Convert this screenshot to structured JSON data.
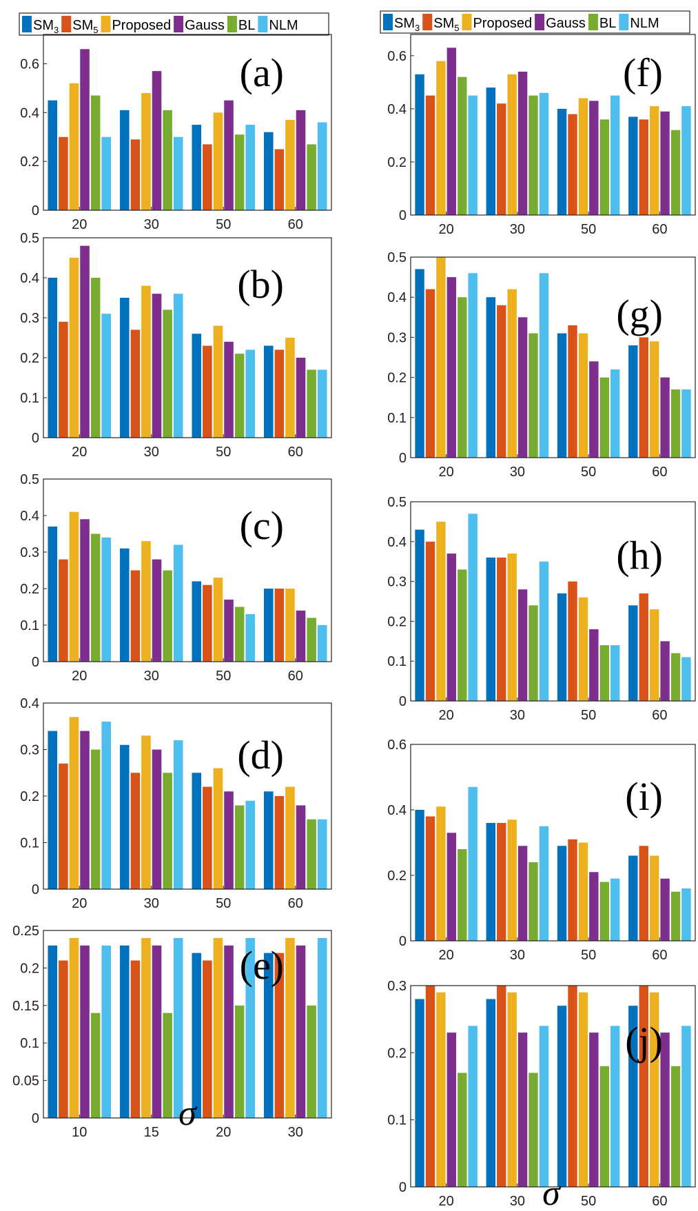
{
  "legend": [
    {
      "name": "SM",
      "sub": "3",
      "color": "#0072BD"
    },
    {
      "name": "SM",
      "sub": "5",
      "color": "#D95319"
    },
    {
      "name": "Proposed",
      "sub": "",
      "color": "#EDB120"
    },
    {
      "name": "Gauss",
      "sub": "",
      "color": "#7E2F8E"
    },
    {
      "name": "BL",
      "sub": "",
      "color": "#77AC30"
    },
    {
      "name": "NLM",
      "sub": "",
      "color": "#4DBEEE"
    }
  ],
  "xlabel_symbol": "σ",
  "chart_data": [
    {
      "panel": "(a)",
      "type": "bar",
      "categories": [
        "20",
        "30",
        "50",
        "60"
      ],
      "ylim": [
        0,
        0.72
      ],
      "yticks": [
        "0",
        "0.2",
        "0.4",
        "0.6"
      ],
      "ytick_values": [
        0,
        0.2,
        0.4,
        0.6
      ],
      "series": [
        [
          0.45,
          0.41,
          0.35,
          0.32
        ],
        [
          0.3,
          0.29,
          0.27,
          0.25
        ],
        [
          0.52,
          0.48,
          0.4,
          0.37
        ],
        [
          0.66,
          0.57,
          0.45,
          0.41
        ],
        [
          0.47,
          0.41,
          0.31,
          0.27
        ],
        [
          0.3,
          0.3,
          0.35,
          0.36
        ]
      ]
    },
    {
      "panel": "(b)",
      "type": "bar",
      "categories": [
        "20",
        "30",
        "50",
        "60"
      ],
      "ylim": [
        0,
        0.5
      ],
      "yticks": [
        "0",
        "0.1",
        "0.2",
        "0.3",
        "0.4",
        "0.5"
      ],
      "ytick_values": [
        0,
        0.1,
        0.2,
        0.3,
        0.4,
        0.5
      ],
      "series": [
        [
          0.4,
          0.35,
          0.26,
          0.23
        ],
        [
          0.29,
          0.27,
          0.23,
          0.22
        ],
        [
          0.45,
          0.38,
          0.28,
          0.25
        ],
        [
          0.48,
          0.36,
          0.24,
          0.2
        ],
        [
          0.4,
          0.32,
          0.21,
          0.17
        ],
        [
          0.31,
          0.36,
          0.22,
          0.17
        ]
      ]
    },
    {
      "panel": "(c)",
      "type": "bar",
      "categories": [
        "20",
        "30",
        "50",
        "60"
      ],
      "ylim": [
        0,
        0.5
      ],
      "yticks": [
        "0",
        "0.1",
        "0.2",
        "0.3",
        "0.4",
        "0.5"
      ],
      "ytick_values": [
        0,
        0.1,
        0.2,
        0.3,
        0.4,
        0.5
      ],
      "series": [
        [
          0.37,
          0.31,
          0.22,
          0.2
        ],
        [
          0.28,
          0.25,
          0.21,
          0.2
        ],
        [
          0.41,
          0.33,
          0.23,
          0.2
        ],
        [
          0.39,
          0.28,
          0.17,
          0.14
        ],
        [
          0.35,
          0.25,
          0.15,
          0.12
        ],
        [
          0.34,
          0.32,
          0.13,
          0.1
        ]
      ]
    },
    {
      "panel": "(d)",
      "type": "bar",
      "categories": [
        "20",
        "30",
        "50",
        "60"
      ],
      "ylim": [
        0,
        0.4
      ],
      "yticks": [
        "0",
        "0.1",
        "0.2",
        "0.3",
        "0.4"
      ],
      "ytick_values": [
        0,
        0.1,
        0.2,
        0.3,
        0.4
      ],
      "series": [
        [
          0.34,
          0.31,
          0.25,
          0.21
        ],
        [
          0.27,
          0.25,
          0.22,
          0.2
        ],
        [
          0.37,
          0.33,
          0.26,
          0.22
        ],
        [
          0.34,
          0.3,
          0.21,
          0.18
        ],
        [
          0.3,
          0.25,
          0.18,
          0.15
        ],
        [
          0.36,
          0.32,
          0.19,
          0.15
        ]
      ]
    },
    {
      "panel": "(e)",
      "type": "bar",
      "categories": [
        "10",
        "15",
        "20",
        "30"
      ],
      "ylim": [
        0,
        0.25
      ],
      "yticks": [
        "0",
        "0.05",
        "0.1",
        "0.15",
        "0.2",
        "0.25"
      ],
      "ytick_values": [
        0,
        0.05,
        0.1,
        0.15,
        0.2,
        0.25
      ],
      "series": [
        [
          0.23,
          0.23,
          0.22,
          0.22
        ],
        [
          0.21,
          0.21,
          0.21,
          0.22
        ],
        [
          0.24,
          0.24,
          0.24,
          0.24
        ],
        [
          0.23,
          0.23,
          0.23,
          0.23
        ],
        [
          0.14,
          0.14,
          0.15,
          0.15
        ],
        [
          0.23,
          0.24,
          0.24,
          0.24
        ]
      ]
    },
    {
      "panel": "(f)",
      "type": "bar",
      "categories": [
        "20",
        "30",
        "50",
        "60"
      ],
      "ylim": [
        0,
        0.68
      ],
      "yticks": [
        "0",
        "0.2",
        "0.4",
        "0.6"
      ],
      "ytick_values": [
        0,
        0.2,
        0.4,
        0.6
      ],
      "series": [
        [
          0.53,
          0.48,
          0.4,
          0.37
        ],
        [
          0.45,
          0.42,
          0.38,
          0.36
        ],
        [
          0.58,
          0.53,
          0.44,
          0.41
        ],
        [
          0.63,
          0.54,
          0.43,
          0.39
        ],
        [
          0.52,
          0.45,
          0.36,
          0.32
        ],
        [
          0.45,
          0.46,
          0.45,
          0.41
        ]
      ]
    },
    {
      "panel": "(g)",
      "type": "bar",
      "categories": [
        "20",
        "30",
        "50",
        "60"
      ],
      "ylim": [
        0,
        0.5
      ],
      "yticks": [
        "0",
        "0.1",
        "0.2",
        "0.3",
        "0.4",
        "0.5"
      ],
      "ytick_values": [
        0,
        0.1,
        0.2,
        0.3,
        0.4,
        0.5
      ],
      "series": [
        [
          0.47,
          0.4,
          0.31,
          0.28
        ],
        [
          0.42,
          0.38,
          0.33,
          0.3
        ],
        [
          0.5,
          0.42,
          0.31,
          0.29
        ],
        [
          0.45,
          0.35,
          0.24,
          0.2
        ],
        [
          0.4,
          0.31,
          0.2,
          0.17
        ],
        [
          0.46,
          0.46,
          0.22,
          0.17
        ]
      ]
    },
    {
      "panel": "(h)",
      "type": "bar",
      "categories": [
        "20",
        "30",
        "50",
        "60"
      ],
      "ylim": [
        0,
        0.5
      ],
      "yticks": [
        "0",
        "0.1",
        "0.2",
        "0.3",
        "0.4",
        "0.5"
      ],
      "ytick_values": [
        0,
        0.1,
        0.2,
        0.3,
        0.4,
        0.5
      ],
      "series": [
        [
          0.43,
          0.36,
          0.27,
          0.24
        ],
        [
          0.4,
          0.36,
          0.3,
          0.27
        ],
        [
          0.45,
          0.37,
          0.26,
          0.23
        ],
        [
          0.37,
          0.28,
          0.18,
          0.15
        ],
        [
          0.33,
          0.24,
          0.14,
          0.12
        ],
        [
          0.47,
          0.35,
          0.14,
          0.11
        ]
      ]
    },
    {
      "panel": "(i)",
      "type": "bar",
      "categories": [
        "20",
        "30",
        "50",
        "60"
      ],
      "ylim": [
        0,
        0.6
      ],
      "yticks": [
        "0",
        "0.2",
        "0.4",
        "0.6"
      ],
      "ytick_values": [
        0,
        0.2,
        0.4,
        0.6
      ],
      "series": [
        [
          0.4,
          0.36,
          0.29,
          0.26
        ],
        [
          0.38,
          0.36,
          0.31,
          0.29
        ],
        [
          0.41,
          0.37,
          0.3,
          0.26
        ],
        [
          0.33,
          0.29,
          0.21,
          0.19
        ],
        [
          0.28,
          0.24,
          0.18,
          0.15
        ],
        [
          0.47,
          0.35,
          0.19,
          0.16
        ]
      ]
    },
    {
      "panel": "(j)",
      "type": "bar",
      "categories": [
        "20",
        "30",
        "50",
        "60"
      ],
      "ylim": [
        0,
        0.3
      ],
      "yticks": [
        "0",
        "0.1",
        "0.2",
        "0.3"
      ],
      "ytick_values": [
        0,
        0.1,
        0.2,
        0.3
      ],
      "series": [
        [
          0.28,
          0.28,
          0.27,
          0.27
        ],
        [
          0.3,
          0.3,
          0.3,
          0.3
        ],
        [
          0.29,
          0.29,
          0.29,
          0.29
        ],
        [
          0.23,
          0.23,
          0.23,
          0.23
        ],
        [
          0.17,
          0.17,
          0.18,
          0.18
        ],
        [
          0.24,
          0.24,
          0.24,
          0.24
        ]
      ]
    }
  ]
}
